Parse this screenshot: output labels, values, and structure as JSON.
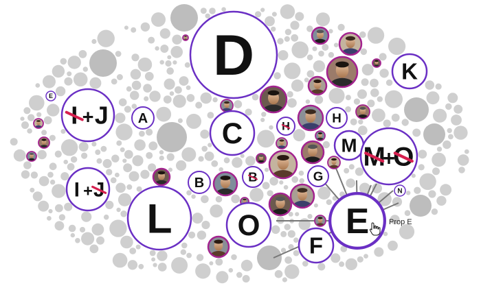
{
  "colors": {
    "ring": "#6a2fc4",
    "strike": "#d6204f",
    "filler": "#cfcfcf",
    "filler_dark": "#bdbdbd",
    "portrait_ring": "#a3238f",
    "line": "#777777"
  },
  "bubbles": {
    "D": {
      "label": "D"
    },
    "L": {
      "label": "L"
    },
    "C": {
      "label": "C"
    },
    "O": {
      "label": "O"
    },
    "E": {
      "label": "E"
    },
    "F": {
      "label": "F"
    },
    "K": {
      "label": "K"
    },
    "M": {
      "label": "M"
    },
    "A": {
      "label": "A"
    },
    "B": {
      "label": "B"
    },
    "B2": {
      "label": "B",
      "struck": true
    },
    "G": {
      "label": "G"
    },
    "H": {
      "label": "H"
    },
    "H2": {
      "label": "H",
      "struck": true
    },
    "N": {
      "label": "N"
    },
    "Esm": {
      "label": "E"
    },
    "IJ": {
      "left": "I",
      "plus": "+",
      "right": "J",
      "struck_left": true
    },
    "IJ2": {
      "left": "I",
      "plus": "+",
      "right": "J",
      "struck_right": true
    },
    "MO": {
      "left": "M",
      "plus": "+",
      "right": "O",
      "struck_left": true,
      "struck_right": true
    }
  },
  "hover": {
    "target": "E",
    "tooltip": "Prop E",
    "icon": "hand-pointer-icon"
  },
  "portraits": {
    "icon": "person-portrait-icon",
    "count": 26
  }
}
